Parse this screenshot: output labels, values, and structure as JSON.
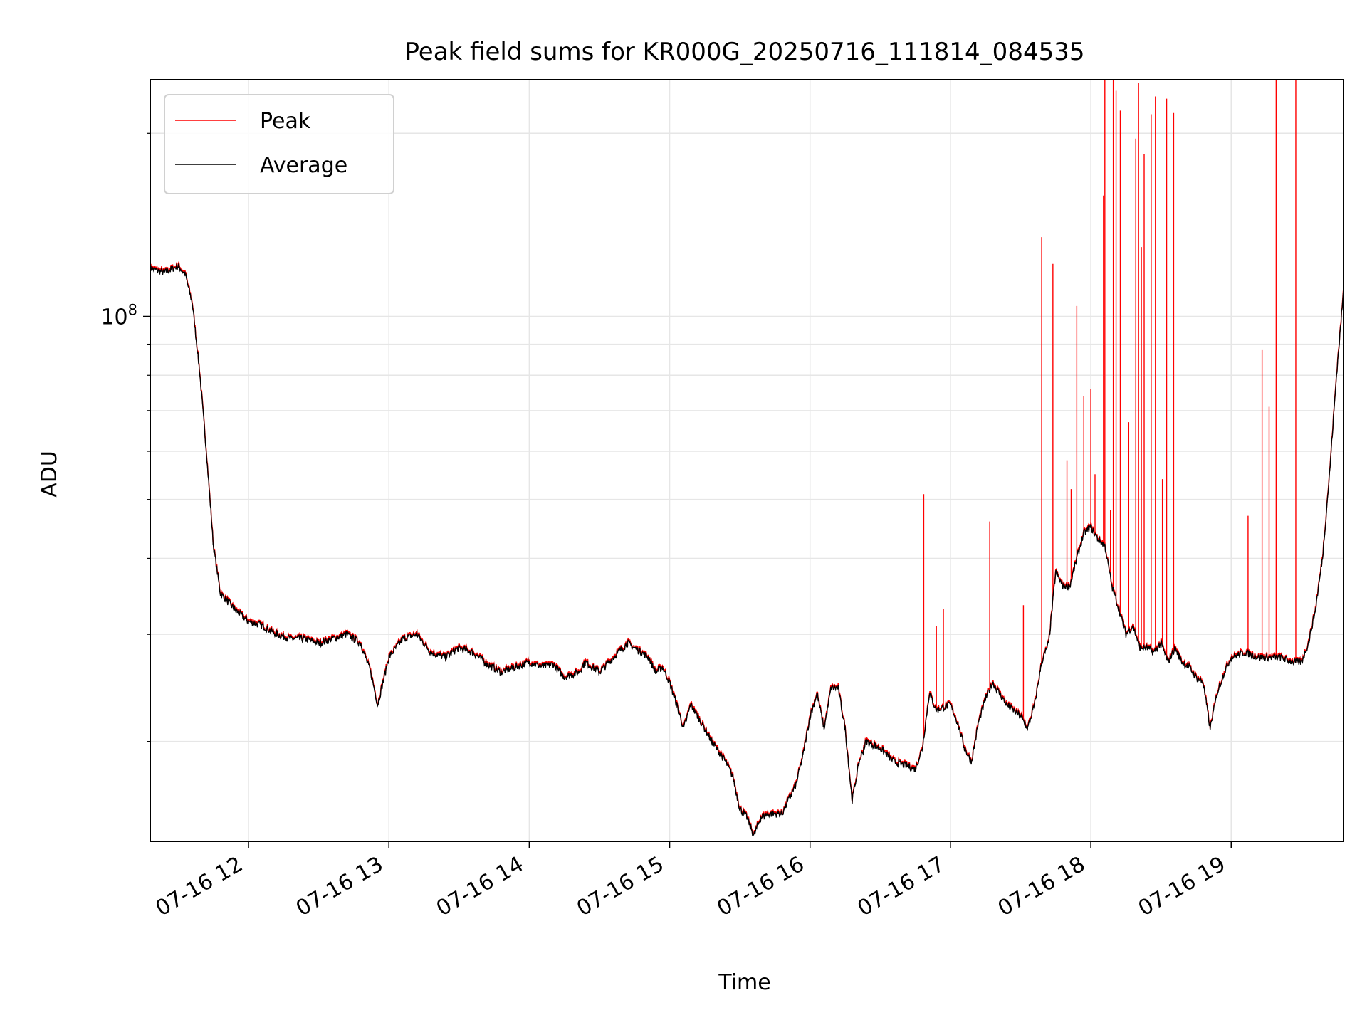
{
  "chart_data": {
    "type": "line",
    "title": "Peak field sums for KR000G_20250716_111814_084535",
    "xlabel": "Time",
    "ylabel": "ADU",
    "y_scale": "log",
    "ylim": [
      13700000,
      245000000
    ],
    "xlim": [
      "07-16 11:18",
      "07-16 19:48"
    ],
    "grid": true,
    "legend_position": "upper-left",
    "x_ticks": [
      "07-16 12",
      "07-16 13",
      "07-16 14",
      "07-16 15",
      "07-16 16",
      "07-16 17",
      "07-16 18",
      "07-16 19"
    ],
    "x_tick_hours": [
      12,
      13,
      14,
      15,
      16,
      17,
      18,
      19
    ],
    "y_major_ticks": [
      {
        "value": 100000000,
        "base": "10",
        "exp": "8"
      }
    ],
    "y_minor_ticks": [
      20000000,
      30000000,
      40000000,
      50000000,
      60000000,
      70000000,
      80000000,
      90000000,
      200000000
    ],
    "series": [
      {
        "name": "Average",
        "color": "#000000",
        "t_hours": [
          11.3,
          11.4,
          11.5,
          11.55,
          11.6,
          11.65,
          11.7,
          11.75,
          11.8,
          11.9,
          12.0,
          12.1,
          12.2,
          12.3,
          12.4,
          12.5,
          12.6,
          12.7,
          12.8,
          12.87,
          12.92,
          13.0,
          13.1,
          13.2,
          13.3,
          13.4,
          13.5,
          13.6,
          13.7,
          13.8,
          13.9,
          14.0,
          14.1,
          14.17,
          14.25,
          14.35,
          14.4,
          14.5,
          14.6,
          14.7,
          14.8,
          14.85,
          14.9,
          14.95,
          15.0,
          15.05,
          15.1,
          15.15,
          15.2,
          15.3,
          15.4,
          15.45,
          15.5,
          15.55,
          15.6,
          15.65,
          15.7,
          15.8,
          15.9,
          15.95,
          16.0,
          16.05,
          16.1,
          16.15,
          16.2,
          16.25,
          16.3,
          16.35,
          16.4,
          16.5,
          16.6,
          16.7,
          16.75,
          16.8,
          16.85,
          16.9,
          17.0,
          17.05,
          17.1,
          17.15,
          17.2,
          17.25,
          17.3,
          17.4,
          17.5,
          17.55,
          17.6,
          17.65,
          17.7,
          17.75,
          17.8,
          17.85,
          17.9,
          17.95,
          18.0,
          18.05,
          18.1,
          18.15,
          18.2,
          18.25,
          18.3,
          18.35,
          18.4,
          18.45,
          18.5,
          18.55,
          18.6,
          18.65,
          18.7,
          18.75,
          18.8,
          18.85,
          18.9,
          18.95,
          19.0,
          19.1,
          19.2,
          19.25,
          19.3,
          19.35,
          19.4,
          19.45,
          19.5,
          19.55,
          19.6,
          19.65,
          19.7,
          19.75,
          19.8
        ],
        "values": [
          120000000,
          118000000,
          121000000,
          117000000,
          105000000,
          82000000,
          60000000,
          42000000,
          35000000,
          33000000,
          31500000,
          31000000,
          30000000,
          29500000,
          29500000,
          29000000,
          29500000,
          30000000,
          29000000,
          26000000,
          23000000,
          27500000,
          29500000,
          30000000,
          28000000,
          27500000,
          28500000,
          28000000,
          26800000,
          26000000,
          26500000,
          27000000,
          26500000,
          26800000,
          25500000,
          26000000,
          27000000,
          26000000,
          27500000,
          29000000,
          28000000,
          27500000,
          26000000,
          26500000,
          25000000,
          23000000,
          21000000,
          23000000,
          22000000,
          20000000,
          18500000,
          17500000,
          15500000,
          15000000,
          14000000,
          15000000,
          15200000,
          15200000,
          17000000,
          19000000,
          22000000,
          24000000,
          21000000,
          24500000,
          24500000,
          21000000,
          16000000,
          18500000,
          20000000,
          19500000,
          18500000,
          18200000,
          18000000,
          19500000,
          24000000,
          22500000,
          23000000,
          21500000,
          19500000,
          18500000,
          21500000,
          23500000,
          25000000,
          23000000,
          22000000,
          21000000,
          23000000,
          27000000,
          29000000,
          38000000,
          36000000,
          36000000,
          40000000,
          44000000,
          45000000,
          43000000,
          42000000,
          36000000,
          33000000,
          30000000,
          31000000,
          28500000,
          28500000,
          28000000,
          29000000,
          27000000,
          28500000,
          27000000,
          26500000,
          25500000,
          25000000,
          21000000,
          24000000,
          26000000,
          27500000,
          28000000,
          27500000,
          27500000,
          27500000,
          27500000,
          27200000,
          27000000,
          27000000,
          29000000,
          33000000,
          40000000,
          55000000,
          80000000,
          110000000
        ]
      },
      {
        "name": "Peak",
        "color": "#ff0000",
        "spikes": [
          {
            "t": 16.81,
            "v": 51000000
          },
          {
            "t": 16.9,
            "v": 31000000
          },
          {
            "t": 16.95,
            "v": 33000000
          },
          {
            "t": 17.28,
            "v": 46000000
          },
          {
            "t": 17.52,
            "v": 33500000
          },
          {
            "t": 17.65,
            "v": 135000000
          },
          {
            "t": 17.73,
            "v": 122000000
          },
          {
            "t": 17.83,
            "v": 58000000
          },
          {
            "t": 17.86,
            "v": 52000000
          },
          {
            "t": 17.9,
            "v": 104000000
          },
          {
            "t": 17.95,
            "v": 74000000
          },
          {
            "t": 18.0,
            "v": 76000000
          },
          {
            "t": 18.03,
            "v": 55000000
          },
          {
            "t": 18.09,
            "v": 158000000
          },
          {
            "t": 18.1,
            "v": 245000000
          },
          {
            "t": 18.14,
            "v": 48000000
          },
          {
            "t": 18.16,
            "v": 245000000
          },
          {
            "t": 18.18,
            "v": 235000000
          },
          {
            "t": 18.21,
            "v": 218000000
          },
          {
            "t": 18.27,
            "v": 67000000
          },
          {
            "t": 18.32,
            "v": 196000000
          },
          {
            "t": 18.34,
            "v": 242000000
          },
          {
            "t": 18.36,
            "v": 130000000
          },
          {
            "t": 18.38,
            "v": 185000000
          },
          {
            "t": 18.43,
            "v": 215000000
          },
          {
            "t": 18.46,
            "v": 230000000
          },
          {
            "t": 18.51,
            "v": 54000000
          },
          {
            "t": 18.54,
            "v": 228000000
          },
          {
            "t": 18.59,
            "v": 216000000
          },
          {
            "t": 19.12,
            "v": 47000000
          },
          {
            "t": 19.22,
            "v": 88000000
          },
          {
            "t": 19.27,
            "v": 71000000
          },
          {
            "t": 19.32,
            "v": 245000000
          },
          {
            "t": 19.46,
            "v": 245000000
          }
        ]
      }
    ]
  }
}
